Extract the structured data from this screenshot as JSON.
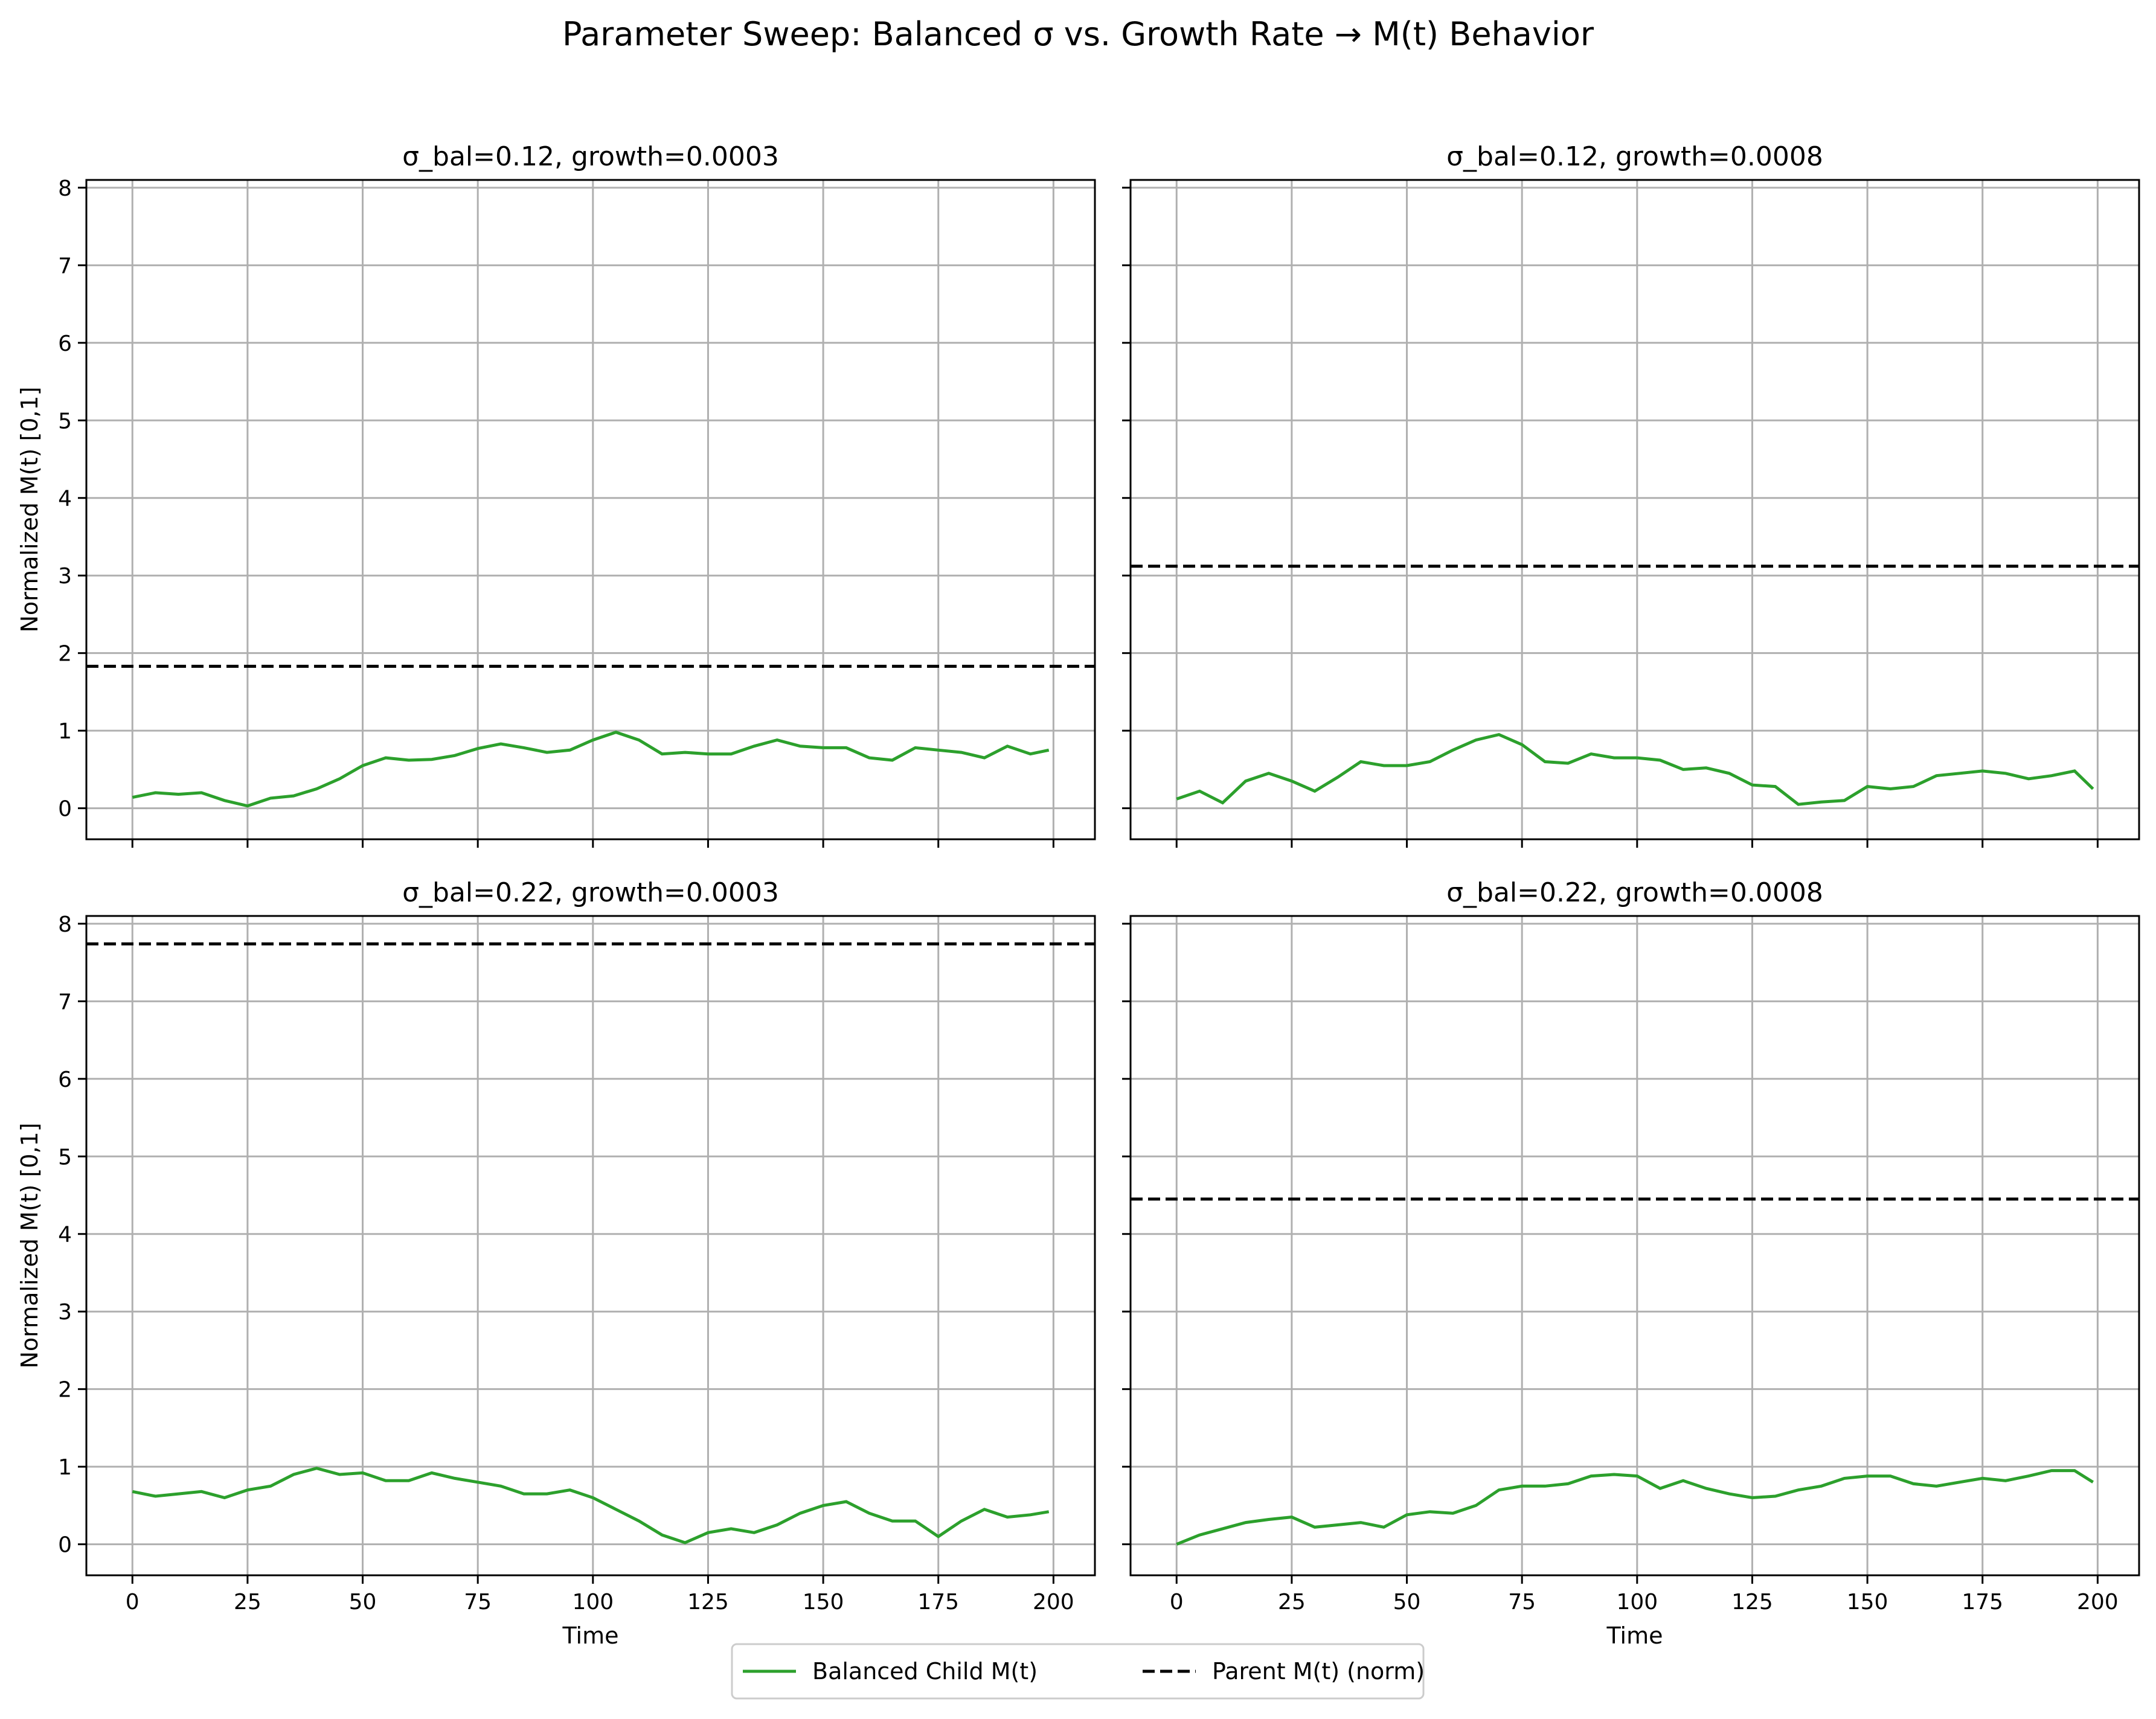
{
  "figure": {
    "title": "Parameter Sweep: Balanced σ vs. Growth Rate → M(t) Behavior"
  },
  "legend": {
    "placement": "bottom-center",
    "entries": [
      {
        "label": "Balanced Child M(t)",
        "color": "#2ca02c",
        "style": "solid"
      },
      {
        "label": "Parent M(t) (norm)",
        "color": "#000000",
        "style": "dashed"
      }
    ]
  },
  "chart_data": [
    {
      "type": "line",
      "title": "σ_bal=0.12, growth=0.0003",
      "xlabel": "",
      "ylabel": "Normalized M(t) [0,1]",
      "xlim": [
        -10,
        209
      ],
      "ylim": [
        -0.4,
        8.1
      ],
      "xticks": [
        0,
        25,
        50,
        75,
        100,
        125,
        150,
        175,
        200
      ],
      "yticks": [
        0,
        1,
        2,
        3,
        4,
        5,
        6,
        7,
        8
      ],
      "show_xtick_labels": false,
      "show_ytick_labels": true,
      "grid": true,
      "series": [
        {
          "name": "Balanced Child M(t)",
          "color": "#2ca02c",
          "x": [
            0,
            5,
            10,
            15,
            20,
            25,
            30,
            35,
            40,
            45,
            50,
            55,
            60,
            65,
            70,
            75,
            80,
            85,
            90,
            95,
            100,
            105,
            110,
            115,
            120,
            125,
            130,
            135,
            140,
            145,
            150,
            155,
            160,
            165,
            170,
            175,
            180,
            185,
            190,
            195,
            199
          ],
          "y": [
            0.14,
            0.2,
            0.18,
            0.2,
            0.1,
            0.03,
            0.13,
            0.16,
            0.25,
            0.38,
            0.55,
            0.65,
            0.62,
            0.63,
            0.68,
            0.77,
            0.83,
            0.78,
            0.72,
            0.75,
            0.88,
            0.98,
            0.88,
            0.7,
            0.72,
            0.7,
            0.7,
            0.8,
            0.88,
            0.8,
            0.78,
            0.78,
            0.65,
            0.62,
            0.78,
            0.75,
            0.72,
            0.65,
            0.8,
            0.7,
            0.75
          ]
        },
        {
          "name": "Parent M(t) (norm)",
          "color": "#000000",
          "dashed": true,
          "x": [
            -10,
            209
          ],
          "y": [
            1.83,
            1.83
          ]
        }
      ]
    },
    {
      "type": "line",
      "title": "σ_bal=0.12, growth=0.0008",
      "xlabel": "",
      "ylabel": "",
      "xlim": [
        -10,
        209
      ],
      "ylim": [
        -0.4,
        8.1
      ],
      "xticks": [
        0,
        25,
        50,
        75,
        100,
        125,
        150,
        175,
        200
      ],
      "yticks": [
        0,
        1,
        2,
        3,
        4,
        5,
        6,
        7,
        8
      ],
      "show_xtick_labels": false,
      "show_ytick_labels": false,
      "grid": true,
      "series": [
        {
          "name": "Balanced Child M(t)",
          "color": "#2ca02c",
          "x": [
            0,
            5,
            10,
            15,
            20,
            25,
            30,
            35,
            40,
            45,
            50,
            55,
            60,
            65,
            70,
            75,
            80,
            85,
            90,
            95,
            100,
            105,
            110,
            115,
            120,
            125,
            130,
            135,
            140,
            145,
            150,
            155,
            160,
            165,
            170,
            175,
            180,
            185,
            190,
            195,
            199
          ],
          "y": [
            0.12,
            0.22,
            0.07,
            0.35,
            0.45,
            0.35,
            0.22,
            0.4,
            0.6,
            0.55,
            0.55,
            0.6,
            0.75,
            0.88,
            0.95,
            0.82,
            0.6,
            0.58,
            0.7,
            0.65,
            0.65,
            0.62,
            0.5,
            0.52,
            0.45,
            0.3,
            0.28,
            0.05,
            0.08,
            0.1,
            0.28,
            0.25,
            0.28,
            0.42,
            0.45,
            0.48,
            0.45,
            0.38,
            0.42,
            0.48,
            0.25
          ]
        },
        {
          "name": "Parent M(t) (norm)",
          "color": "#000000",
          "dashed": true,
          "x": [
            -10,
            209
          ],
          "y": [
            3.12,
            3.12
          ]
        }
      ]
    },
    {
      "type": "line",
      "title": "σ_bal=0.22, growth=0.0003",
      "xlabel": "Time",
      "ylabel": "Normalized M(t) [0,1]",
      "xlim": [
        -10,
        209
      ],
      "ylim": [
        -0.4,
        8.1
      ],
      "xticks": [
        0,
        25,
        50,
        75,
        100,
        125,
        150,
        175,
        200
      ],
      "yticks": [
        0,
        1,
        2,
        3,
        4,
        5,
        6,
        7,
        8
      ],
      "show_xtick_labels": true,
      "show_ytick_labels": true,
      "grid": true,
      "series": [
        {
          "name": "Balanced Child M(t)",
          "color": "#2ca02c",
          "x": [
            0,
            5,
            10,
            15,
            20,
            25,
            30,
            35,
            40,
            45,
            50,
            55,
            60,
            65,
            70,
            75,
            80,
            85,
            90,
            95,
            100,
            105,
            110,
            115,
            120,
            125,
            130,
            135,
            140,
            145,
            150,
            155,
            160,
            165,
            170,
            175,
            180,
            185,
            190,
            195,
            199
          ],
          "y": [
            0.68,
            0.62,
            0.65,
            0.68,
            0.6,
            0.7,
            0.75,
            0.9,
            0.98,
            0.9,
            0.92,
            0.82,
            0.82,
            0.92,
            0.85,
            0.8,
            0.75,
            0.65,
            0.65,
            0.7,
            0.6,
            0.45,
            0.3,
            0.12,
            0.02,
            0.15,
            0.2,
            0.15,
            0.25,
            0.4,
            0.5,
            0.55,
            0.4,
            0.3,
            0.3,
            0.1,
            0.3,
            0.45,
            0.35,
            0.38,
            0.42
          ]
        },
        {
          "name": "Parent M(t) (norm)",
          "color": "#000000",
          "dashed": true,
          "x": [
            -10,
            209
          ],
          "y": [
            7.74,
            7.74
          ]
        }
      ]
    },
    {
      "type": "line",
      "title": "σ_bal=0.22, growth=0.0008",
      "xlabel": "Time",
      "ylabel": "",
      "xlim": [
        -10,
        209
      ],
      "ylim": [
        -0.4,
        8.1
      ],
      "xticks": [
        0,
        25,
        50,
        75,
        100,
        125,
        150,
        175,
        200
      ],
      "yticks": [
        0,
        1,
        2,
        3,
        4,
        5,
        6,
        7,
        8
      ],
      "show_xtick_labels": true,
      "show_ytick_labels": false,
      "grid": true,
      "series": [
        {
          "name": "Balanced Child M(t)",
          "color": "#2ca02c",
          "x": [
            0,
            5,
            10,
            15,
            20,
            25,
            30,
            35,
            40,
            45,
            50,
            55,
            60,
            65,
            70,
            75,
            80,
            85,
            90,
            95,
            100,
            105,
            110,
            115,
            120,
            125,
            130,
            135,
            140,
            145,
            150,
            155,
            160,
            165,
            170,
            175,
            180,
            185,
            190,
            195,
            199
          ],
          "y": [
            0.0,
            0.12,
            0.2,
            0.28,
            0.32,
            0.35,
            0.22,
            0.25,
            0.28,
            0.22,
            0.38,
            0.42,
            0.4,
            0.5,
            0.7,
            0.75,
            0.75,
            0.78,
            0.88,
            0.9,
            0.88,
            0.72,
            0.82,
            0.72,
            0.65,
            0.6,
            0.62,
            0.7,
            0.75,
            0.85,
            0.88,
            0.88,
            0.78,
            0.75,
            0.8,
            0.85,
            0.82,
            0.88,
            0.95,
            0.95,
            0.8
          ]
        },
        {
          "name": "Parent M(t) (norm)",
          "color": "#000000",
          "dashed": true,
          "x": [
            -10,
            209
          ],
          "y": [
            4.45,
            4.45
          ]
        }
      ]
    }
  ]
}
